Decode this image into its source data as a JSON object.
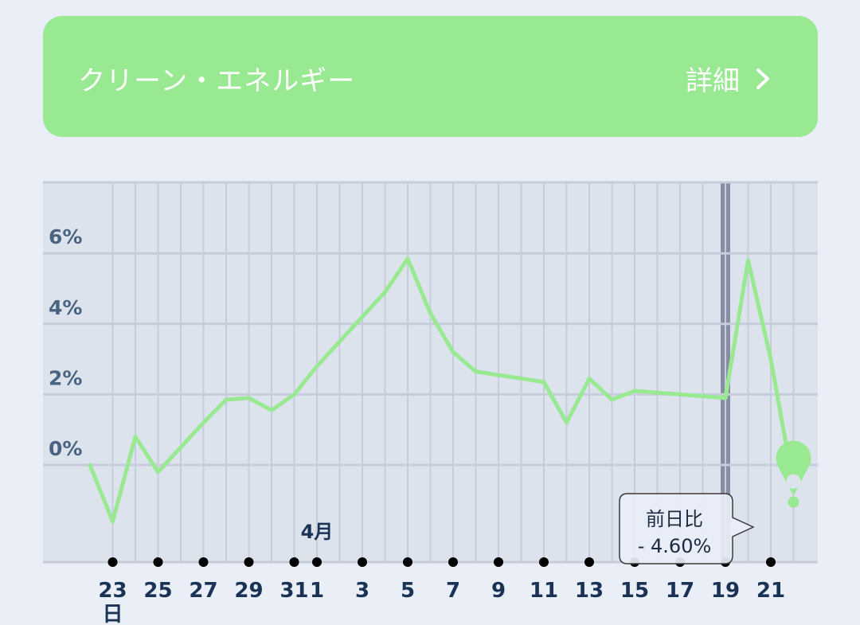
{
  "header": {
    "title": "クリーン・エネルギー",
    "detail_label": "詳細",
    "detail_icon": "chevron-right-icon",
    "background": "#98e992"
  },
  "chart_data": {
    "type": "line",
    "series": [
      {
        "color": "#98e992",
        "values": [
          0.0,
          -1.6,
          0.8,
          -0.2,
          0.5,
          1.2,
          1.85,
          1.9,
          1.55,
          2.0,
          2.8,
          3.5,
          4.2,
          4.9,
          5.85,
          4.3,
          3.2,
          2.65,
          2.55,
          2.45,
          2.35,
          1.2,
          2.45,
          1.85,
          2.1,
          2.05,
          2.0,
          1.95,
          1.9,
          5.8,
          3.0,
          -0.6
        ]
      }
    ],
    "x_tick_labels": [
      "23",
      "25",
      "27",
      "29",
      "31",
      "1",
      "3",
      "5",
      "7",
      "9",
      "11",
      "13",
      "15",
      "17",
      "19",
      "21"
    ],
    "x_sub_label": "日",
    "month_marker": "4月",
    "y_tick_labels": [
      "0%",
      "2%",
      "4%",
      "6%"
    ],
    "ylim": [
      -2.75,
      8.05
    ],
    "grid": true,
    "highlight_band_index": 28,
    "tooltip": {
      "label": "前日比",
      "value": "- 4.60%"
    },
    "marker_icon": "location-pin-icon",
    "colors": {
      "plot_bg": "#dde3ed",
      "grid": "#c6ccda",
      "axis_text": "#4a6380",
      "tick_text": "#1a3355",
      "highlight": "#878ea3",
      "dot": "#000000"
    }
  }
}
